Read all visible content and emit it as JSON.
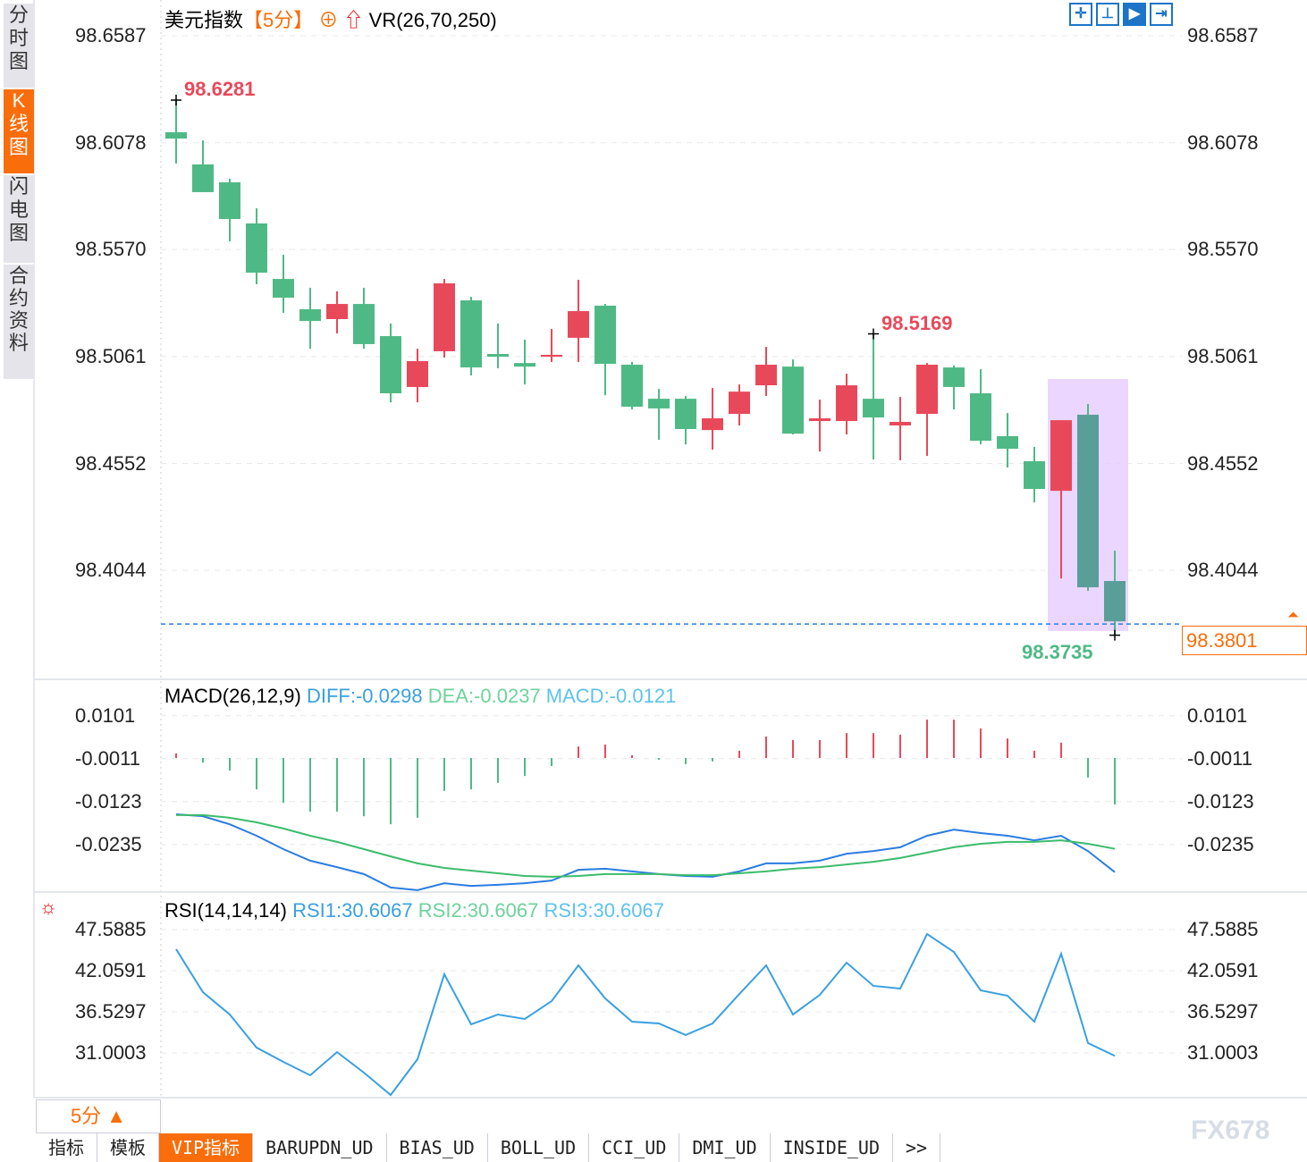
{
  "sidebar": [
    {
      "label": "分时图",
      "active": false
    },
    {
      "label": "K线图",
      "active": true
    },
    {
      "label": "闪电图",
      "active": false
    },
    {
      "label": "合约资料",
      "active": false
    }
  ],
  "header": {
    "symbol": "美元指数",
    "period": "【5分】",
    "add_icon": "circle-plus-icon",
    "arrow_icon": "red-up-arrow-icon",
    "indicator": "VR(26,70,250)"
  },
  "toolbar_icons": [
    "crosshair-icon",
    "zoom-out-icon",
    "zoom-in-icon",
    "scroll-right-icon"
  ],
  "colors": {
    "up": "#e8495a",
    "down": "#4fb985",
    "diff": "#2a7de1",
    "dea": "#3cbc6c",
    "rsi": "#3aa0e0",
    "accent": "#f96d0a",
    "highlight": "#e6ccff"
  },
  "price_axis": [
    "98.6587",
    "98.6078",
    "98.5570",
    "98.5061",
    "98.4552",
    "98.4044"
  ],
  "annotations": {
    "high": "98.6281",
    "mid_high": "98.5169",
    "low": "98.3735",
    "last": "98.3801"
  },
  "chart_data": [
    {
      "type": "candlestick",
      "ylim": [
        98.3735,
        98.6587
      ],
      "candles": [
        [
          98.6128,
          98.6281,
          98.5979,
          98.6098
        ],
        [
          98.5975,
          98.6089,
          98.5843,
          98.5843
        ],
        [
          98.589,
          98.5907,
          98.5609,
          98.5715
        ],
        [
          98.5694,
          98.5766,
          98.5405,
          98.546
        ],
        [
          98.543,
          98.5545,
          98.5269,
          98.5341
        ],
        [
          98.5286,
          98.5388,
          98.5098,
          98.523
        ],
        [
          98.5239,
          98.5371,
          98.5171,
          98.5311
        ],
        [
          98.5311,
          98.5388,
          98.5098,
          98.512
        ],
        [
          98.5158,
          98.5218,
          98.4843,
          98.4886
        ],
        [
          98.4916,
          98.5098,
          98.4843,
          98.5039
        ],
        [
          98.5086,
          98.543,
          98.5056,
          98.5409
        ],
        [
          98.5328,
          98.5345,
          98.4971,
          98.5009
        ],
        [
          98.5073,
          98.5218,
          98.5005,
          98.506
        ],
        [
          98.503,
          98.5141,
          98.4928,
          98.5013
        ],
        [
          98.506,
          98.5192,
          98.5035,
          98.5069
        ],
        [
          98.515,
          98.5426,
          98.5035,
          98.5277
        ],
        [
          98.5303,
          98.5311,
          98.4877,
          98.5026
        ],
        [
          98.5022,
          98.5035,
          98.4809,
          98.4822
        ],
        [
          98.486,
          98.4907,
          98.4665,
          98.4814
        ],
        [
          98.486,
          98.4873,
          98.4643,
          98.4716
        ],
        [
          98.4711,
          98.4911,
          98.4618,
          98.4767
        ],
        [
          98.4788,
          98.4928,
          98.4733,
          98.4894
        ],
        [
          98.4924,
          98.5107,
          98.4873,
          98.5022
        ],
        [
          98.5013,
          98.5047,
          98.469,
          98.4694
        ],
        [
          98.4754,
          98.4856,
          98.4609,
          98.4767
        ],
        [
          98.4754,
          98.4979,
          98.469,
          98.4924
        ],
        [
          98.486,
          98.5169,
          98.4571,
          98.4771
        ],
        [
          98.4733,
          98.4869,
          98.4567,
          98.475
        ],
        [
          98.4788,
          98.503,
          98.4588,
          98.5022
        ],
        [
          98.5009,
          98.5018,
          98.4809,
          98.4916
        ],
        [
          98.4886,
          98.5001,
          98.4643,
          98.466
        ],
        [
          98.4682,
          98.4792,
          98.4533,
          98.4622
        ],
        [
          98.4563,
          98.4631,
          98.4367,
          98.4431
        ],
        [
          98.4422,
          98.4758,
          98.4005,
          98.4758
        ],
        [
          98.4784,
          98.4835,
          98.3946,
          98.3963
        ],
        [
          98.3993,
          98.4137,
          98.3735,
          98.3801
        ]
      ],
      "highlight_range": [
        34,
        36
      ]
    },
    {
      "type": "line",
      "title": "MACD(26,12,9)",
      "legend": [
        "DIFF:-0.0298",
        "DEA:-0.0237",
        "MACD:-0.0121"
      ],
      "yticks": [
        "0.0101",
        "-0.0011",
        "-0.0123",
        "-0.0235"
      ],
      "macd": [
        0.0012,
        -0.0012,
        -0.0033,
        -0.0082,
        -0.0117,
        -0.014,
        -0.014,
        -0.0152,
        -0.0173,
        -0.0156,
        -0.0086,
        -0.0082,
        -0.0065,
        -0.0047,
        -0.0021,
        0.003,
        0.0035,
        0.0007,
        -0.0005,
        -0.0016,
        -0.0009,
        0.0019,
        0.0056,
        0.0047,
        0.0047,
        0.0065,
        0.0065,
        0.0061,
        0.01,
        0.01,
        0.0077,
        0.0051,
        0.0019,
        0.004,
        -0.0051,
        -0.0121
      ],
      "diff": [
        -0.0147,
        -0.0152,
        -0.0173,
        -0.0203,
        -0.0238,
        -0.0268,
        -0.0285,
        -0.0303,
        -0.0338,
        -0.0345,
        -0.0327,
        -0.0334,
        -0.0331,
        -0.0327,
        -0.032,
        -0.0292,
        -0.0289,
        -0.0296,
        -0.0303,
        -0.0308,
        -0.031,
        -0.0296,
        -0.0275,
        -0.0275,
        -0.0268,
        -0.025,
        -0.0243,
        -0.0233,
        -0.0203,
        -0.0187,
        -0.0196,
        -0.0203,
        -0.0215,
        -0.0203,
        -0.0243,
        -0.0298
      ],
      "dea": [
        -0.0149,
        -0.0149,
        -0.0156,
        -0.0168,
        -0.0184,
        -0.0203,
        -0.0219,
        -0.0238,
        -0.0257,
        -0.0275,
        -0.0287,
        -0.0294,
        -0.0301,
        -0.0308,
        -0.031,
        -0.0308,
        -0.0303,
        -0.0303,
        -0.0303,
        -0.0306,
        -0.0306,
        -0.0301,
        -0.0296,
        -0.0289,
        -0.0285,
        -0.0278,
        -0.0271,
        -0.0261,
        -0.0247,
        -0.0233,
        -0.0224,
        -0.0219,
        -0.0219,
        -0.0215,
        -0.0224,
        -0.0237
      ]
    },
    {
      "type": "line",
      "title": "RSI(14,14,14)",
      "legend": [
        "RSI1:30.6067",
        "RSI2:30.6067",
        "RSI3:30.6067"
      ],
      "yticks": [
        "47.5885",
        "42.0591",
        "36.5297",
        "31.0003"
      ],
      "rsi": [
        44.95,
        39.17,
        36.17,
        31.72,
        29.8,
        28.0,
        31.12,
        28.36,
        25.35,
        30.16,
        41.58,
        34.85,
        36.17,
        35.57,
        37.97,
        42.78,
        38.33,
        35.21,
        34.97,
        33.41,
        34.97,
        38.93,
        42.78,
        36.17,
        38.81,
        43.14,
        40.02,
        39.66,
        46.99,
        44.58,
        39.42,
        38.69,
        35.21,
        44.34,
        32.33,
        30.61
      ]
    }
  ],
  "period_selector": "5分 ▲",
  "bottom_tabs": [
    {
      "label": "指标"
    },
    {
      "label": "模板"
    },
    {
      "label": "VIP指标",
      "active": true
    },
    {
      "label": "BARUPDN_UD"
    },
    {
      "label": "BIAS_UD"
    },
    {
      "label": "BOLL_UD"
    },
    {
      "label": "CCI_UD"
    },
    {
      "label": "DMI_UD"
    },
    {
      "label": "INSIDE_UD"
    },
    {
      "label": ">>"
    }
  ],
  "watermark": "FX678"
}
